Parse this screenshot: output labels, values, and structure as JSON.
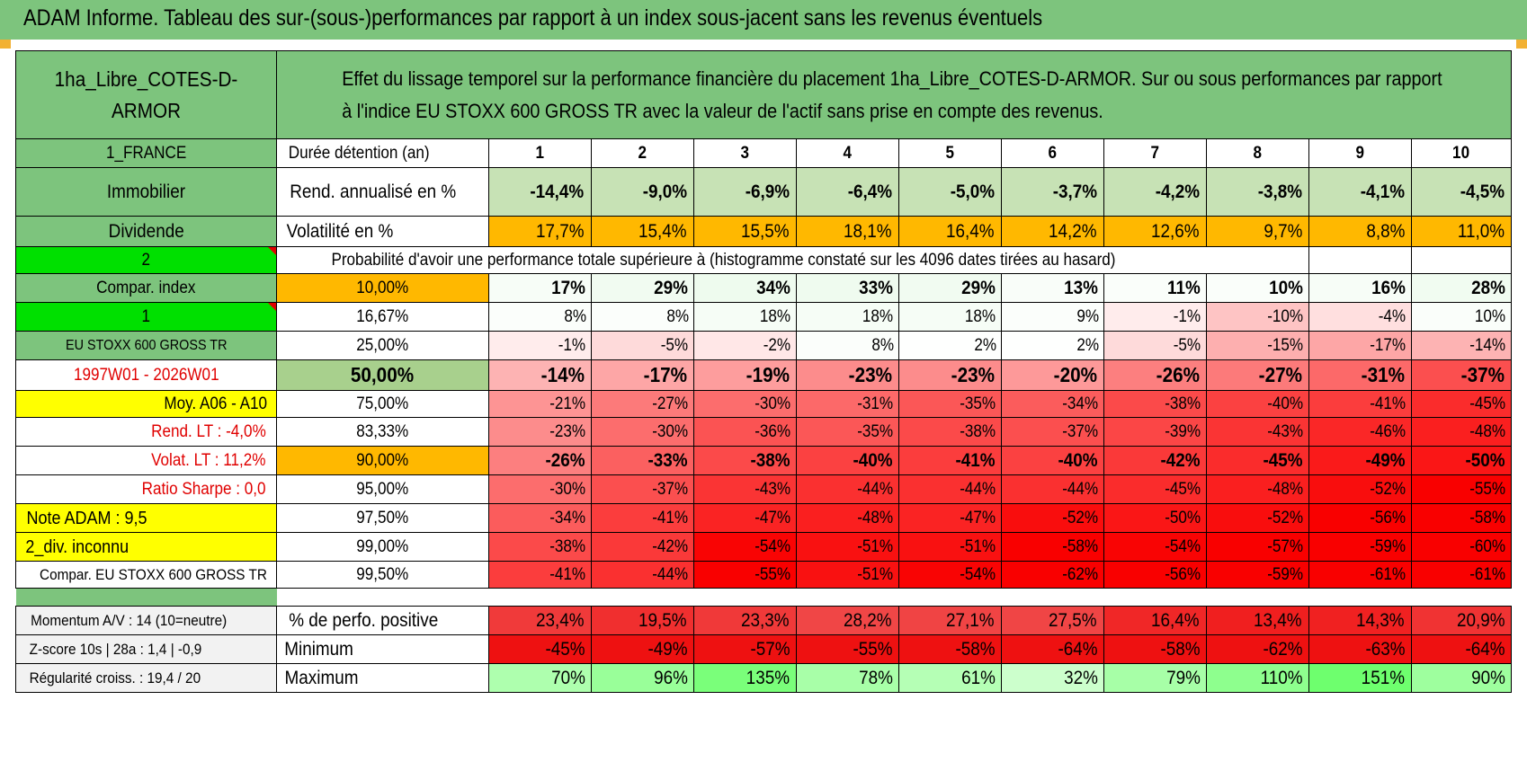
{
  "title": "ADAM Informe. Tableau des sur-(sous-)performances par rapport à un index sous-jacent sans les revenus éventuels",
  "header": {
    "fund": "1ha_Libre_COTES-D-ARMOR",
    "description": "Effet du lissage temporel sur la performance financière du placement 1ha_Libre_COTES-D-ARMOR. Sur ou sous performances par rapport à l'indice EU STOXX 600 GROSS TR avec la valeur de l'actif sans prise en compte des revenus."
  },
  "left": {
    "country": "1_FRANCE",
    "type": "Immobilier",
    "distrib": "Dividende",
    "n2": "2",
    "compar_index": "Compar. index",
    "n1": "1",
    "index_name": "EU STOXX 600 GROSS TR",
    "period": "1997W01 - 2026W01",
    "moy": "Moy. A06 - A10",
    "rend_lt": "Rend. LT :    -4,0%",
    "volat_lt": "Volat. LT :    11,2%",
    "sharpe": "Ratio Sharpe :     0,0",
    "note": "Note ADAM : 9,5",
    "div": "2_div. inconnu",
    "compar2": "Compar. EU STOXX 600 GROSS TR",
    "momentum": "Momentum A/V : 14 (10=neutre)",
    "zscore": "Z-score 10s | 28a : 1,4 | -0,9",
    "regularite": "Régularité croiss. : 19,4 / 20"
  },
  "labels": {
    "duree": "Durée détention (an)",
    "rend": "Rend. annualisé en %",
    "vol": "Volatilité en %",
    "proba": "Probabilité d'avoir une performance totale supérieure à (histogramme constaté sur les 4096 dates tirées au hasard)",
    "pct_pos": "% de perfo. positive",
    "minimum": "Minimum",
    "maximum": "Maximum"
  },
  "years": [
    "1",
    "2",
    "3",
    "4",
    "5",
    "6",
    "7",
    "8",
    "9",
    "10"
  ],
  "rend": [
    "-14,4%",
    "-9,0%",
    "-6,9%",
    "-6,4%",
    "-5,0%",
    "-3,7%",
    "-4,2%",
    "-3,8%",
    "-4,1%",
    "-4,5%"
  ],
  "vol": [
    "17,7%",
    "15,4%",
    "15,5%",
    "18,1%",
    "16,4%",
    "14,2%",
    "12,6%",
    "9,7%",
    "8,8%",
    "11,0%"
  ],
  "quantiles": [
    {
      "q": "10,00%",
      "v": [
        "17%",
        "29%",
        "34%",
        "33%",
        "29%",
        "13%",
        "11%",
        "10%",
        "16%",
        "28%"
      ]
    },
    {
      "q": "16,67%",
      "v": [
        "8%",
        "8%",
        "18%",
        "18%",
        "18%",
        "9%",
        "-1%",
        "-10%",
        "-4%",
        "10%"
      ]
    },
    {
      "q": "25,00%",
      "v": [
        "-1%",
        "-5%",
        "-2%",
        "8%",
        "2%",
        "2%",
        "-5%",
        "-15%",
        "-17%",
        "-14%"
      ]
    },
    {
      "q": "50,00%",
      "v": [
        "-14%",
        "-17%",
        "-19%",
        "-23%",
        "-23%",
        "-20%",
        "-26%",
        "-27%",
        "-31%",
        "-37%"
      ]
    },
    {
      "q": "75,00%",
      "v": [
        "-21%",
        "-27%",
        "-30%",
        "-31%",
        "-35%",
        "-34%",
        "-38%",
        "-40%",
        "-41%",
        "-45%"
      ]
    },
    {
      "q": "83,33%",
      "v": [
        "-23%",
        "-30%",
        "-36%",
        "-35%",
        "-38%",
        "-37%",
        "-39%",
        "-43%",
        "-46%",
        "-48%"
      ]
    },
    {
      "q": "90,00%",
      "v": [
        "-26%",
        "-33%",
        "-38%",
        "-40%",
        "-41%",
        "-40%",
        "-42%",
        "-45%",
        "-49%",
        "-50%"
      ]
    },
    {
      "q": "95,00%",
      "v": [
        "-30%",
        "-37%",
        "-43%",
        "-44%",
        "-44%",
        "-44%",
        "-45%",
        "-48%",
        "-52%",
        "-55%"
      ]
    },
    {
      "q": "97,50%",
      "v": [
        "-34%",
        "-41%",
        "-47%",
        "-48%",
        "-47%",
        "-52%",
        "-50%",
        "-52%",
        "-56%",
        "-58%"
      ]
    },
    {
      "q": "99,00%",
      "v": [
        "-38%",
        "-42%",
        "-54%",
        "-51%",
        "-51%",
        "-58%",
        "-54%",
        "-57%",
        "-59%",
        "-60%"
      ]
    },
    {
      "q": "99,50%",
      "v": [
        "-41%",
        "-44%",
        "-55%",
        "-51%",
        "-54%",
        "-62%",
        "-56%",
        "-59%",
        "-61%",
        "-61%"
      ]
    }
  ],
  "pct_pos": [
    "23,4%",
    "19,5%",
    "23,3%",
    "28,2%",
    "27,1%",
    "27,5%",
    "16,4%",
    "13,4%",
    "14,3%",
    "20,9%"
  ],
  "minimum": [
    "-45%",
    "-49%",
    "-57%",
    "-55%",
    "-58%",
    "-64%",
    "-58%",
    "-62%",
    "-63%",
    "-64%"
  ],
  "maximum": [
    "70%",
    "96%",
    "135%",
    "78%",
    "61%",
    "32%",
    "79%",
    "110%",
    "151%",
    "90%"
  ],
  "colors": {
    "green": "#7dc47d",
    "bright_green": "#00e000",
    "yellow": "#ffff00",
    "orange": "#ffb800",
    "red": "#e00000"
  }
}
